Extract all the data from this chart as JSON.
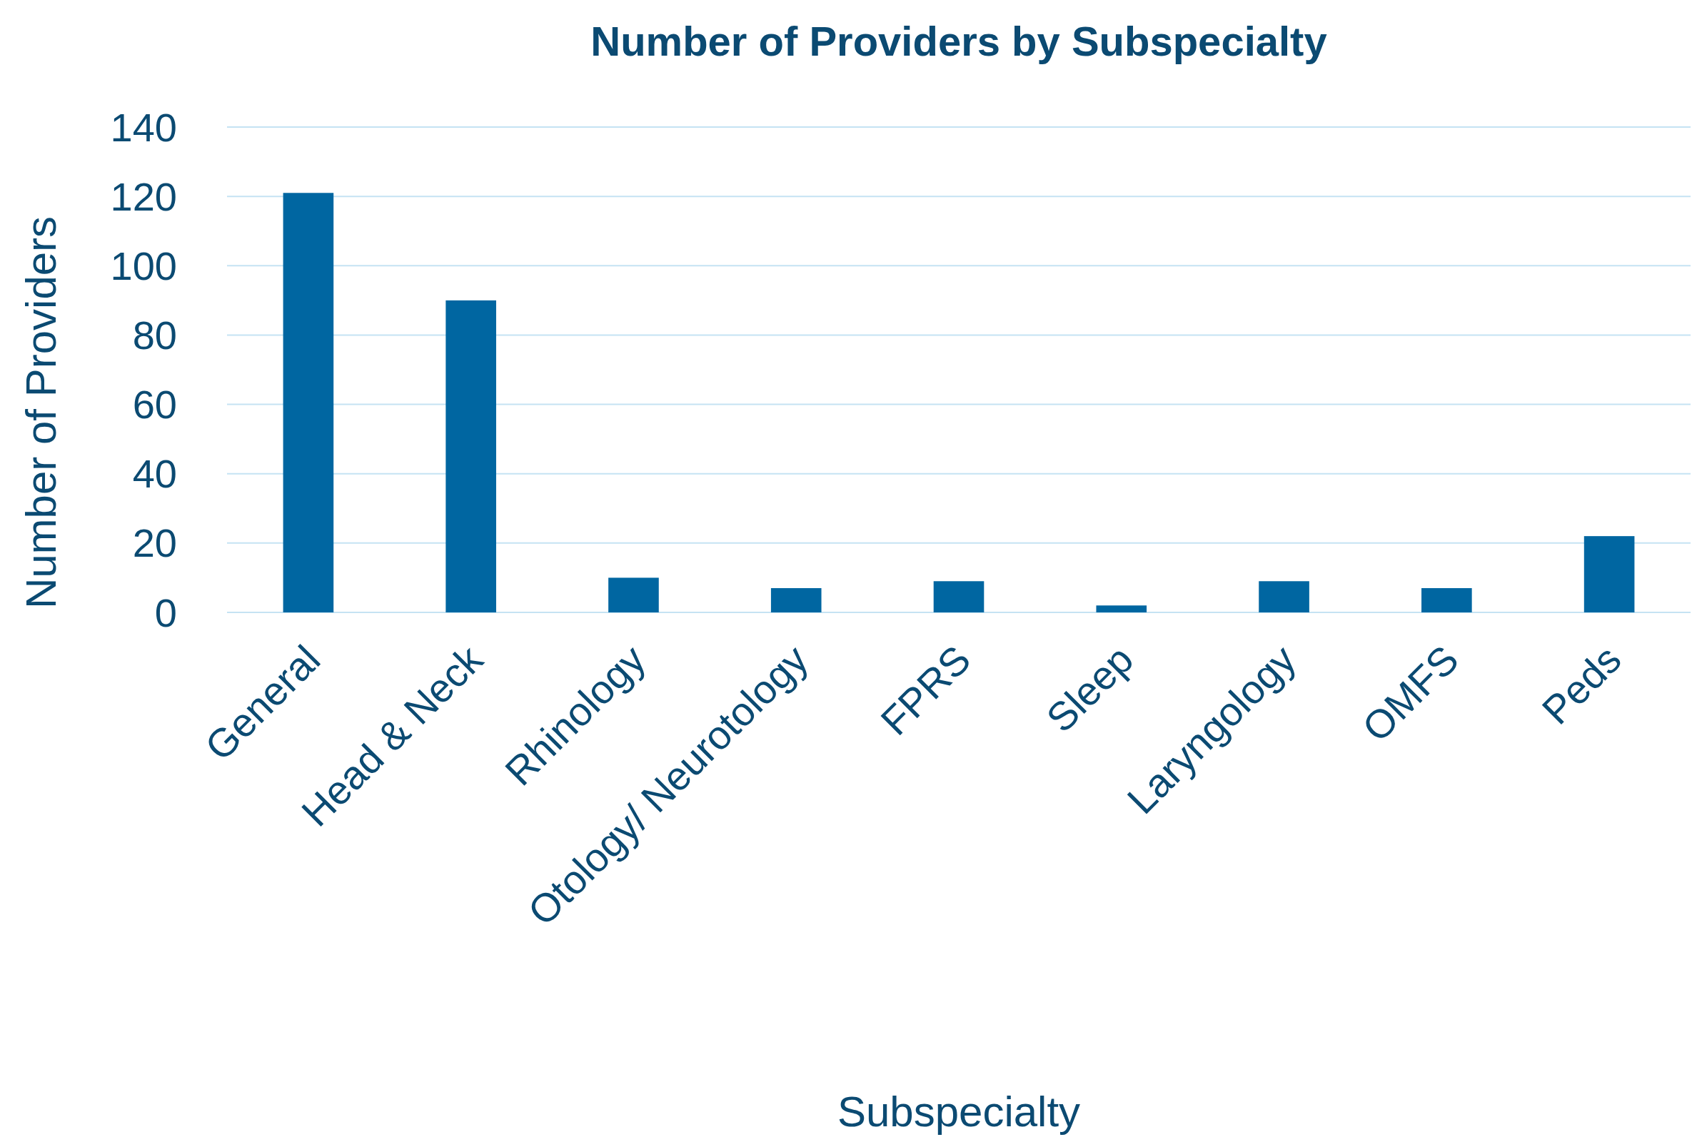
{
  "chart_data": {
    "type": "bar",
    "title": "Number of Providers by Subspecialty",
    "xlabel": "Subspecialty",
    "ylabel": "Number of Providers",
    "categories": [
      "General",
      "Head & Neck",
      "Rhinology",
      "Otology/ Neurotology",
      "FPRS",
      "Sleep",
      "Laryngology",
      "OMFS",
      "Peds"
    ],
    "values": [
      121,
      90,
      10,
      7,
      9,
      2,
      9,
      7,
      22
    ],
    "color": "#0066a1",
    "ylim": [
      0,
      140
    ],
    "yticks": [
      0,
      20,
      40,
      60,
      80,
      100,
      120,
      140
    ],
    "grid": "y"
  }
}
